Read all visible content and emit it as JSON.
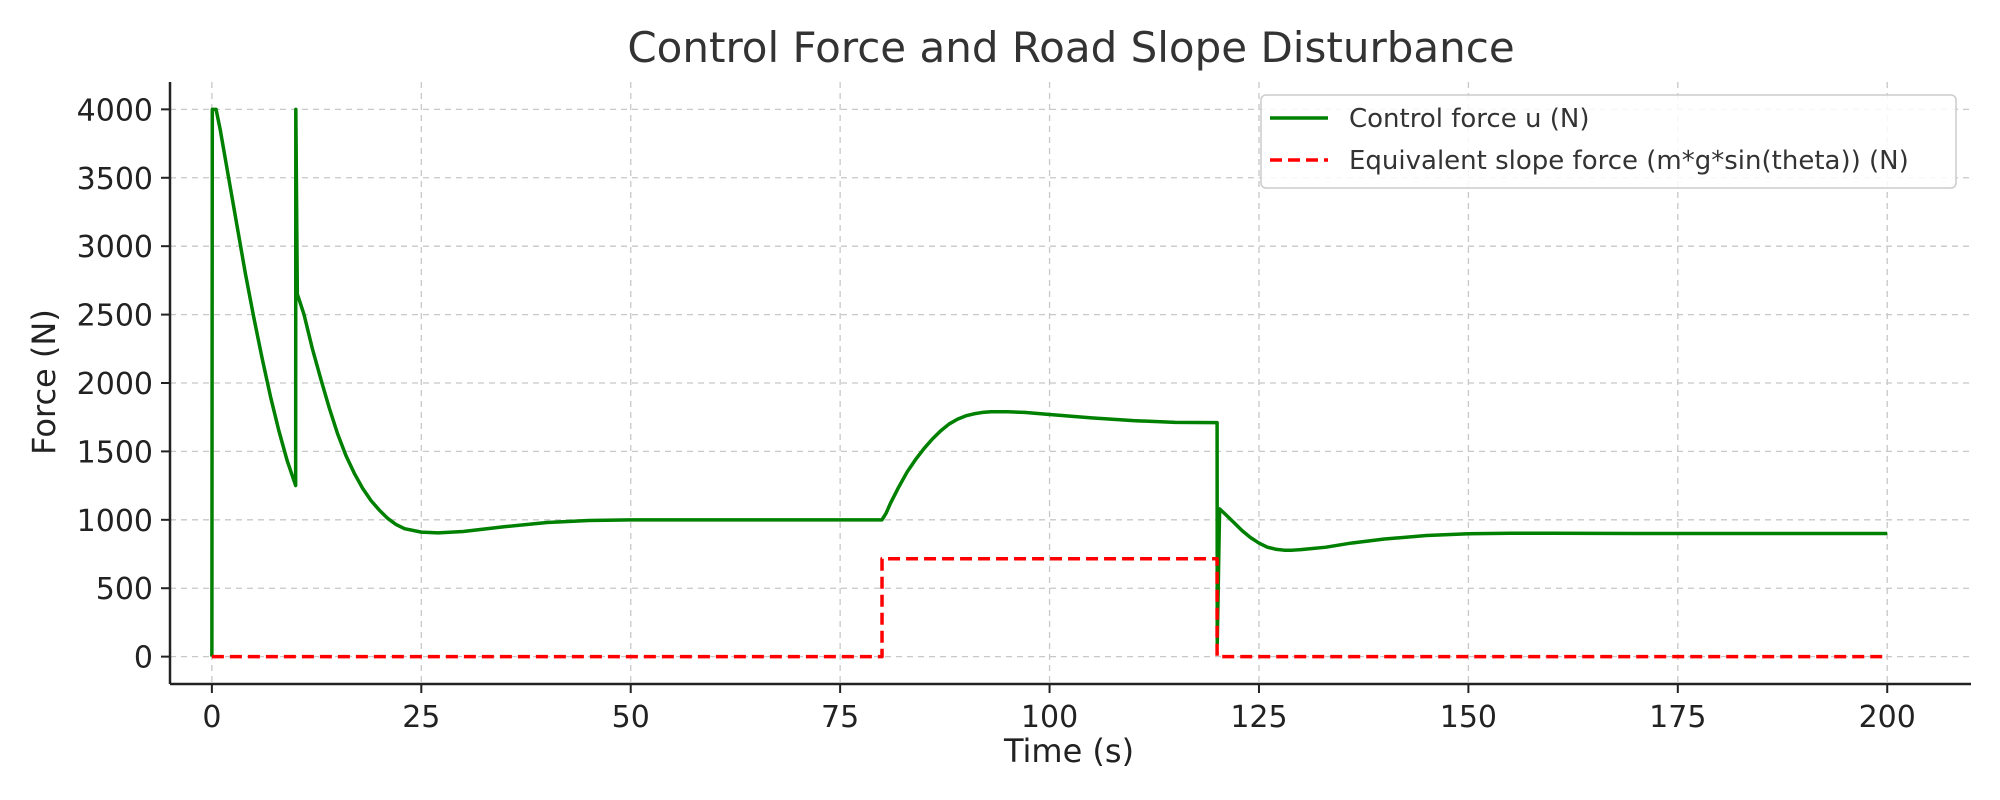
{
  "chart_data": {
    "type": "line",
    "title": "Control Force and Road Slope Disturbance",
    "xlabel": "Time (s)",
    "ylabel": "Force (N)",
    "xlim": [
      -5,
      210
    ],
    "ylim": [
      -200,
      4200
    ],
    "x_ticks": [
      0,
      25,
      50,
      75,
      100,
      125,
      150,
      175,
      200
    ],
    "y_ticks": [
      0,
      500,
      1000,
      1500,
      2000,
      2500,
      3000,
      3500,
      4000
    ],
    "grid": true,
    "legend_position": "top-right",
    "series": [
      {
        "name": "Control force u (N)",
        "color": "#008000",
        "style": "solid",
        "points": [
          [
            0,
            0
          ],
          [
            0.05,
            4000
          ],
          [
            0.5,
            4000
          ],
          [
            1,
            3850
          ],
          [
            2,
            3500
          ],
          [
            3,
            3150
          ],
          [
            4,
            2800
          ],
          [
            5,
            2480
          ],
          [
            6,
            2180
          ],
          [
            7,
            1900
          ],
          [
            8,
            1650
          ],
          [
            9,
            1430
          ],
          [
            10,
            1250
          ],
          [
            10.02,
            4000
          ],
          [
            10.2,
            2650
          ],
          [
            11,
            2500
          ],
          [
            12,
            2250
          ],
          [
            13,
            2030
          ],
          [
            14,
            1820
          ],
          [
            15,
            1630
          ],
          [
            16,
            1470
          ],
          [
            17,
            1340
          ],
          [
            18,
            1230
          ],
          [
            19,
            1140
          ],
          [
            20,
            1070
          ],
          [
            21,
            1010
          ],
          [
            22,
            965
          ],
          [
            23,
            935
          ],
          [
            25,
            910
          ],
          [
            27,
            905
          ],
          [
            30,
            915
          ],
          [
            35,
            950
          ],
          [
            40,
            980
          ],
          [
            45,
            995
          ],
          [
            50,
            1000
          ],
          [
            60,
            1000
          ],
          [
            70,
            1000
          ],
          [
            80,
            1000
          ],
          [
            80.5,
            1050
          ],
          [
            81,
            1120
          ],
          [
            82,
            1240
          ],
          [
            83,
            1350
          ],
          [
            84,
            1440
          ],
          [
            85,
            1520
          ],
          [
            86,
            1590
          ],
          [
            87,
            1650
          ],
          [
            88,
            1700
          ],
          [
            89,
            1735
          ],
          [
            90,
            1760
          ],
          [
            91,
            1775
          ],
          [
            92,
            1785
          ],
          [
            93,
            1790
          ],
          [
            95,
            1790
          ],
          [
            97,
            1785
          ],
          [
            100,
            1770
          ],
          [
            105,
            1745
          ],
          [
            110,
            1725
          ],
          [
            115,
            1712
          ],
          [
            120,
            1710
          ],
          [
            120.02,
            100
          ],
          [
            120.3,
            1080
          ],
          [
            121,
            1040
          ],
          [
            122,
            980
          ],
          [
            123,
            920
          ],
          [
            124,
            870
          ],
          [
            125,
            830
          ],
          [
            126,
            800
          ],
          [
            127,
            785
          ],
          [
            128,
            778
          ],
          [
            129,
            778
          ],
          [
            130,
            782
          ],
          [
            133,
            800
          ],
          [
            136,
            830
          ],
          [
            140,
            860
          ],
          [
            145,
            885
          ],
          [
            150,
            898
          ],
          [
            155,
            902
          ],
          [
            160,
            902
          ],
          [
            170,
            900
          ],
          [
            180,
            900
          ],
          [
            190,
            900
          ],
          [
            200,
            900
          ]
        ]
      },
      {
        "name": "Equivalent slope force (m*g*sin(theta)) (N)",
        "color": "#ff0000",
        "style": "dashed",
        "points": [
          [
            0,
            0
          ],
          [
            80,
            0
          ],
          [
            80,
            715
          ],
          [
            120,
            715
          ],
          [
            120,
            0
          ],
          [
            200,
            0
          ]
        ]
      }
    ]
  }
}
